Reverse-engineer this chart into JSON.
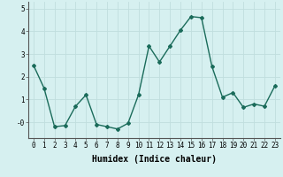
{
  "x": [
    0,
    1,
    2,
    3,
    4,
    5,
    6,
    7,
    8,
    9,
    10,
    11,
    12,
    13,
    14,
    15,
    16,
    17,
    18,
    19,
    20,
    21,
    22,
    23
  ],
  "y": [
    2.5,
    1.5,
    -0.2,
    -0.15,
    0.7,
    1.2,
    -0.1,
    -0.2,
    -0.3,
    -0.05,
    1.2,
    3.35,
    2.65,
    3.35,
    4.05,
    4.65,
    4.6,
    2.45,
    1.1,
    1.3,
    0.65,
    0.8,
    0.7,
    1.6
  ],
  "line_color": "#1a6b5a",
  "marker": "D",
  "marker_size": 2.0,
  "linewidth": 1.0,
  "xlabel": "Humidex (Indice chaleur)",
  "xlabel_fontsize": 7,
  "xlabel_weight": "bold",
  "ylim": [
    -0.7,
    5.3
  ],
  "xlim": [
    -0.5,
    23.5
  ],
  "yticks": [
    0,
    1,
    2,
    3,
    4,
    5
  ],
  "ytick_labels": [
    "-0",
    "1",
    "2",
    "3",
    "4",
    "5"
  ],
  "xticks": [
    0,
    1,
    2,
    3,
    4,
    5,
    6,
    7,
    8,
    9,
    10,
    11,
    12,
    13,
    14,
    15,
    16,
    17,
    18,
    19,
    20,
    21,
    22,
    23
  ],
  "background_color": "#d6f0f0",
  "grid_color": "#c0dede",
  "tick_fontsize": 5.5
}
